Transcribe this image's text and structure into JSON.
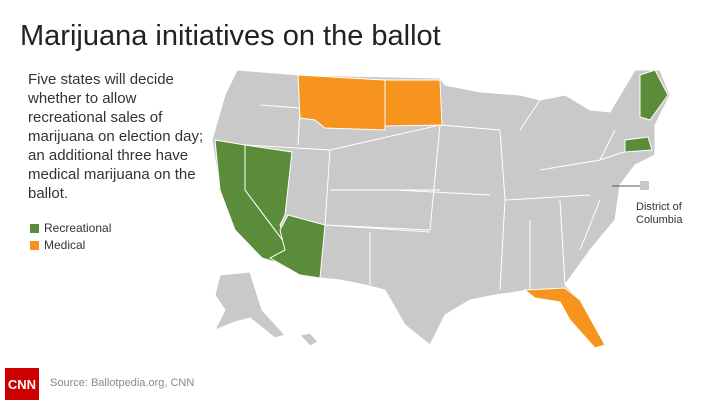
{
  "header": {
    "title": "Marijuana initiatives on the ballot"
  },
  "description": "Five states will decide whether to allow recreational sales of marijuana on election day; an additional three have medical marijuana on the ballot.",
  "legend": [
    {
      "label": "Recreational",
      "color": "#5b8c3a"
    },
    {
      "label": "Medical",
      "color": "#f7941d"
    }
  ],
  "map": {
    "base_color": "#c9c9c9",
    "callout": "District of Columbia"
  },
  "footer": {
    "logo": "CNN",
    "source": "Source: Ballotpedia.org, CNN"
  }
}
